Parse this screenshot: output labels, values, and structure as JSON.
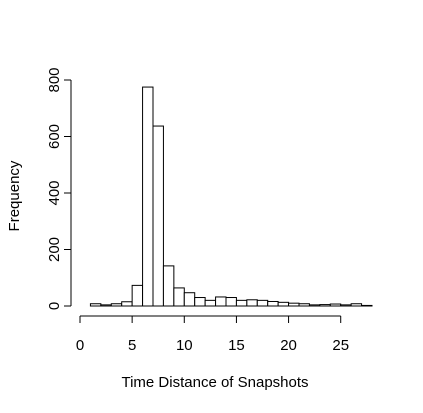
{
  "chart_data": {
    "type": "histogram",
    "title": "",
    "xlabel": "Time Distance of Snapshots",
    "ylabel": "Frequency",
    "xlim": [
      0,
      28
    ],
    "ylim": [
      0,
      800
    ],
    "x_ticks": [
      0,
      5,
      10,
      15,
      20,
      25
    ],
    "y_ticks": [
      0,
      200,
      400,
      600,
      800
    ],
    "bin_width": 1,
    "bins": [
      {
        "start": 1,
        "end": 2,
        "value": 8
      },
      {
        "start": 2,
        "end": 3,
        "value": 4
      },
      {
        "start": 3,
        "end": 4,
        "value": 8
      },
      {
        "start": 4,
        "end": 5,
        "value": 15
      },
      {
        "start": 5,
        "end": 6,
        "value": 73
      },
      {
        "start": 6,
        "end": 7,
        "value": 775
      },
      {
        "start": 7,
        "end": 8,
        "value": 637
      },
      {
        "start": 8,
        "end": 9,
        "value": 142
      },
      {
        "start": 9,
        "end": 10,
        "value": 64
      },
      {
        "start": 10,
        "end": 11,
        "value": 47
      },
      {
        "start": 11,
        "end": 12,
        "value": 30
      },
      {
        "start": 12,
        "end": 13,
        "value": 20
      },
      {
        "start": 13,
        "end": 14,
        "value": 32
      },
      {
        "start": 14,
        "end": 15,
        "value": 30
      },
      {
        "start": 15,
        "end": 16,
        "value": 20
      },
      {
        "start": 16,
        "end": 17,
        "value": 22
      },
      {
        "start": 17,
        "end": 18,
        "value": 20
      },
      {
        "start": 18,
        "end": 19,
        "value": 16
      },
      {
        "start": 19,
        "end": 20,
        "value": 13
      },
      {
        "start": 20,
        "end": 21,
        "value": 10
      },
      {
        "start": 21,
        "end": 22,
        "value": 8
      },
      {
        "start": 22,
        "end": 23,
        "value": 4
      },
      {
        "start": 23,
        "end": 24,
        "value": 5
      },
      {
        "start": 24,
        "end": 25,
        "value": 7
      },
      {
        "start": 25,
        "end": 26,
        "value": 4
      },
      {
        "start": 26,
        "end": 27,
        "value": 8
      },
      {
        "start": 27,
        "end": 28,
        "value": 2
      }
    ],
    "grid": false,
    "legend": "none"
  }
}
